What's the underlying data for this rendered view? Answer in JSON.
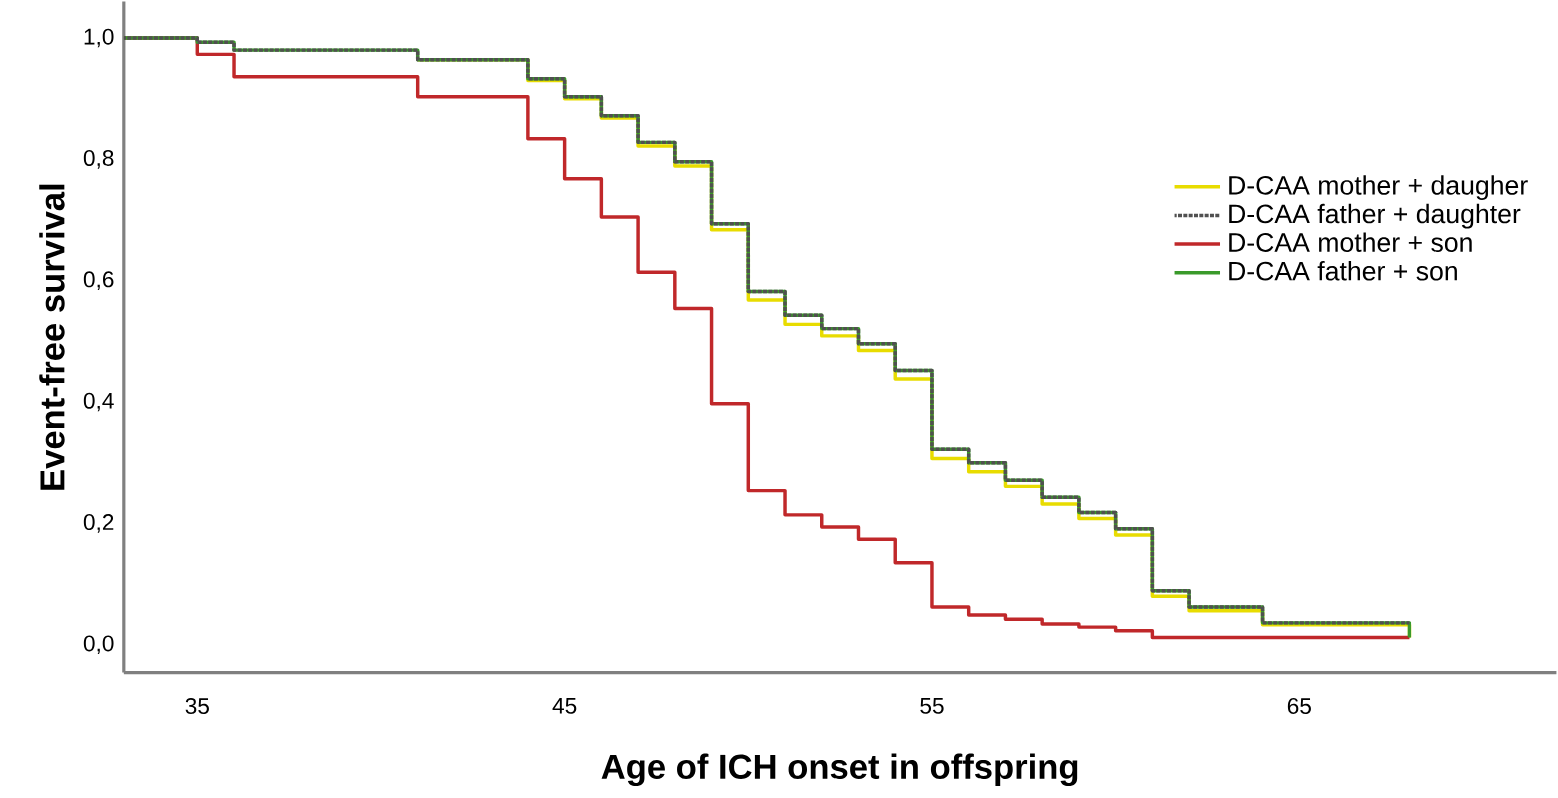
{
  "chart_data": {
    "type": "step",
    "xlabel": "Age of ICH onset in offspring",
    "ylabel": "Event-free survival",
    "xlim": [
      33,
      72
    ],
    "ylim": [
      -0.046,
      1.06
    ],
    "xticks": [
      35,
      45,
      55,
      65
    ],
    "yticks": [
      {
        "value": 0,
        "label": "0,0"
      },
      {
        "value": 0.2,
        "label": "0,2"
      },
      {
        "value": 0.4,
        "label": "0,4"
      },
      {
        "value": 0.6,
        "label": "0,6"
      },
      {
        "value": 0.8,
        "label": "0,8"
      },
      {
        "value": 1.0,
        "label": "1,0"
      }
    ],
    "grid": false,
    "legend": "right",
    "line_style": "solid",
    "series": [
      {
        "name": "D-CAA mother + daugher",
        "color": "#e8dc00",
        "x": [
          41,
          44,
          45,
          46,
          47,
          48,
          49,
          50,
          51,
          52,
          53,
          54,
          55,
          56,
          57,
          58,
          59,
          60,
          61,
          62,
          64,
          68,
          68
        ],
        "values": [
          0.964,
          0.93,
          0.9,
          0.868,
          0.822,
          0.789,
          0.684,
          0.568,
          0.528,
          0.509,
          0.485,
          0.438,
          0.307,
          0.285,
          0.261,
          0.232,
          0.208,
          0.181,
          0.08,
          0.056,
          0.033,
          0.033,
          0.012
        ]
      },
      {
        "name": "D-CAA father + daughter",
        "color": "#505050",
        "line_style": "dotted",
        "x": [
          33,
          35,
          36,
          41,
          44,
          45,
          46,
          47,
          48,
          49,
          50,
          51,
          52,
          53,
          54,
          55,
          56,
          57,
          58,
          59,
          60,
          61,
          62,
          64,
          68
        ],
        "values": [
          1.0,
          0.993,
          0.98,
          0.964,
          0.933,
          0.903,
          0.872,
          0.828,
          0.796,
          0.694,
          0.582,
          0.543,
          0.521,
          0.496,
          0.452,
          0.322,
          0.3,
          0.271,
          0.243,
          0.218,
          0.191,
          0.089,
          0.062,
          0.036,
          0.036
        ]
      },
      {
        "name": "D-CAA mother + son",
        "color": "#c0282a",
        "x": [
          33,
          35,
          36,
          41,
          44,
          45,
          46,
          47,
          48,
          49,
          50,
          51,
          52,
          53,
          54,
          55,
          56,
          57,
          58,
          59,
          60,
          61,
          68
        ],
        "values": [
          1.0,
          0.973,
          0.936,
          0.903,
          0.834,
          0.768,
          0.705,
          0.614,
          0.554,
          0.397,
          0.254,
          0.214,
          0.194,
          0.174,
          0.135,
          0.062,
          0.049,
          0.042,
          0.034,
          0.029,
          0.023,
          0.012,
          0.012
        ]
      },
      {
        "name": "D-CAA father + son",
        "color": "#3a9a2a",
        "x": [
          33,
          35,
          36,
          41,
          44,
          45,
          46,
          47,
          48,
          49,
          50,
          51,
          52,
          53,
          54,
          55,
          56,
          57,
          58,
          59,
          60,
          61,
          62,
          64,
          68,
          68
        ],
        "values": [
          1.0,
          0.993,
          0.98,
          0.964,
          0.933,
          0.903,
          0.872,
          0.828,
          0.796,
          0.694,
          0.582,
          0.543,
          0.521,
          0.496,
          0.452,
          0.322,
          0.3,
          0.271,
          0.243,
          0.218,
          0.191,
          0.089,
          0.062,
          0.036,
          0.036,
          0.012
        ]
      }
    ]
  }
}
